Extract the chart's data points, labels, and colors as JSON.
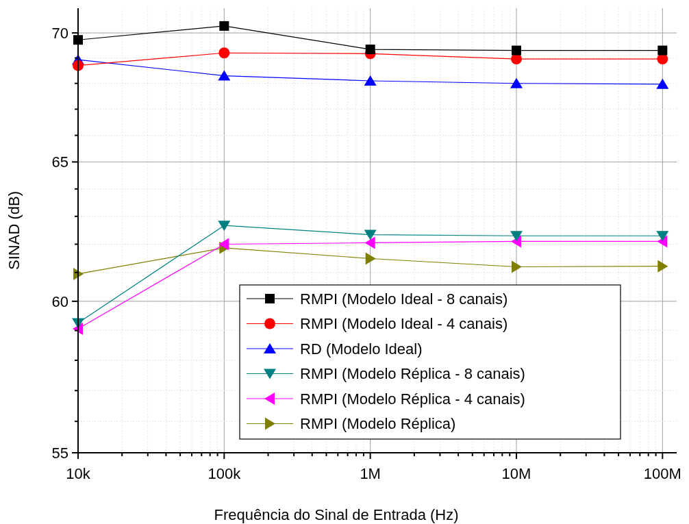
{
  "chart_data": {
    "type": "line",
    "xlabel": "Frequência do Sinal de Entrada (Hz)",
    "ylabel": "SINAD (dB)",
    "log": "xy",
    "grid": true,
    "legend": "bottom",
    "x": [
      10000,
      100000,
      1000000,
      10000000,
      100000000
    ],
    "xlim": [
      10000,
      125000000
    ],
    "xticks": [
      {
        "value": 10000,
        "label": "10k"
      },
      {
        "value": 20000,
        "label": null
      },
      {
        "value": 30000,
        "label": null
      },
      {
        "value": 40000,
        "label": null
      },
      {
        "value": 50000,
        "label": null
      },
      {
        "value": 60000,
        "label": null
      },
      {
        "value": 70000,
        "label": null
      },
      {
        "value": 80000,
        "label": null
      },
      {
        "value": 90000,
        "label": null
      },
      {
        "value": 100000,
        "label": "100k"
      },
      {
        "value": 200000,
        "label": null
      },
      {
        "value": 300000,
        "label": null
      },
      {
        "value": 400000,
        "label": null
      },
      {
        "value": 500000,
        "label": null
      },
      {
        "value": 600000,
        "label": null
      },
      {
        "value": 700000,
        "label": null
      },
      {
        "value": 800000,
        "label": null
      },
      {
        "value": 900000,
        "label": null
      },
      {
        "value": 1000000,
        "label": "1M"
      },
      {
        "value": 2000000,
        "label": null
      },
      {
        "value": 3000000,
        "label": null
      },
      {
        "value": 4000000,
        "label": null
      },
      {
        "value": 5000000,
        "label": null
      },
      {
        "value": 6000000,
        "label": null
      },
      {
        "value": 7000000,
        "label": null
      },
      {
        "value": 8000000,
        "label": null
      },
      {
        "value": 9000000,
        "label": null
      },
      {
        "value": 10000000,
        "label": "10M"
      },
      {
        "value": 20000000,
        "label": null
      },
      {
        "value": 30000000,
        "label": null
      },
      {
        "value": 40000000,
        "label": null
      },
      {
        "value": 50000000,
        "label": null
      },
      {
        "value": 60000000,
        "label": null
      },
      {
        "value": 70000000,
        "label": null
      },
      {
        "value": 80000000,
        "label": null
      },
      {
        "value": 90000000,
        "label": null
      },
      {
        "value": 100000000,
        "label": "100M"
      }
    ],
    "ylim": [
      55,
      71
    ],
    "yticks": [
      55,
      {
        "value": 56,
        "label": null
      },
      {
        "value": 57,
        "label": null
      },
      {
        "value": 58,
        "label": null
      },
      {
        "value": 59,
        "label": null
      },
      60,
      {
        "value": 61,
        "label": null
      },
      {
        "value": 62,
        "label": null
      },
      {
        "value": 63,
        "label": null
      },
      {
        "value": 64,
        "label": null
      },
      65,
      {
        "value": 66,
        "label": null
      },
      {
        "value": 67,
        "label": null
      },
      {
        "value": 68,
        "label": null
      },
      {
        "value": 69,
        "label": null
      },
      70
    ],
    "series": [
      {
        "name": "RMPI (Modelo Ideal - 8 canais)",
        "color": "#000000",
        "marker": "square",
        "values": [
          69.72,
          70.28,
          69.34,
          69.3,
          69.3
        ]
      },
      {
        "name": "RMPI (Modelo Ideal - 4 canais)",
        "color": "#ff0000",
        "marker": "circle",
        "values": [
          68.7,
          69.2,
          69.17,
          68.96,
          68.96
        ]
      },
      {
        "name": "RD (Modelo Ideal)",
        "color": "#0000ff",
        "marker": "triangle",
        "values": [
          68.93,
          68.3,
          68.1,
          68.0,
          67.97
        ]
      },
      {
        "name": "RMPI (Modelo Réplica - 8 canais)",
        "color": "#008080",
        "marker": "triangle-down",
        "values": [
          59.26,
          62.67,
          62.34,
          62.3,
          62.3
        ]
      },
      {
        "name": "RMPI (Modelo Réplica - 4 canais)",
        "color": "#ff00ff",
        "marker": "triangle-left",
        "values": [
          59.06,
          62.0,
          62.05,
          62.1,
          62.1
        ]
      },
      {
        "name": "RMPI (Modelo Réplica)",
        "color": "#808000",
        "marker": "triangle-right",
        "values": [
          60.95,
          61.87,
          61.49,
          61.2,
          61.22
        ]
      }
    ]
  }
}
